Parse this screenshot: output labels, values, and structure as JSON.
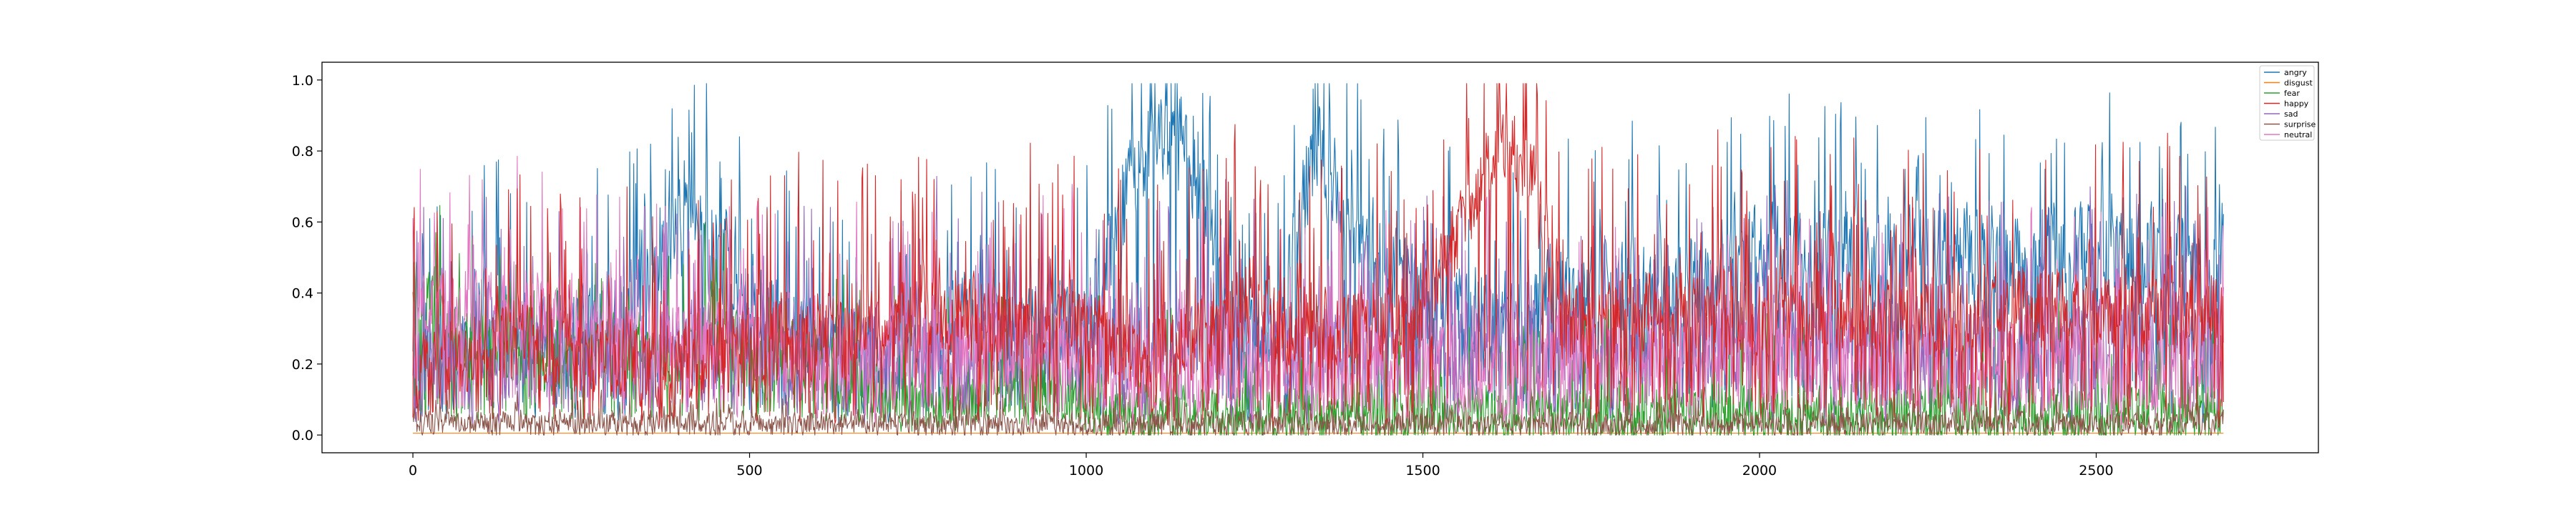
{
  "chart_data": {
    "type": "line",
    "title": "",
    "xlabel": "",
    "ylabel": "",
    "xlim": [
      -135,
      2830
    ],
    "ylim": [
      -0.05,
      1.05
    ],
    "n_points": 2690,
    "grid": false,
    "legend_position": "top-right",
    "x_ticks": [
      0,
      500,
      1000,
      1500,
      2000,
      2500
    ],
    "x_tick_labels": [
      "0",
      "500",
      "1000",
      "1500",
      "2000",
      "2500"
    ],
    "y_ticks": [
      0.0,
      0.2,
      0.4,
      0.6,
      0.8,
      1.0
    ],
    "y_tick_labels": [
      "0.0",
      "0.2",
      "0.4",
      "0.6",
      "0.8",
      "1.0"
    ],
    "series": [
      {
        "name": "angry",
        "color": "#1f77b4",
        "draw_order": 1,
        "anchors_x": [
          0,
          100,
          200,
          300,
          380,
          420,
          500,
          600,
          700,
          800,
          900,
          1000,
          1040,
          1080,
          1120,
          1160,
          1200,
          1240,
          1300,
          1340,
          1400,
          1500,
          1600,
          1700,
          1800,
          1900,
          2000,
          2100,
          2200,
          2300,
          2400,
          2500,
          2600,
          2690
        ],
        "anchors_y": [
          0.15,
          0.3,
          0.25,
          0.3,
          0.55,
          0.6,
          0.4,
          0.2,
          0.2,
          0.3,
          0.3,
          0.3,
          0.55,
          0.8,
          0.85,
          0.75,
          0.5,
          0.2,
          0.4,
          0.85,
          0.5,
          0.4,
          0.3,
          0.4,
          0.4,
          0.4,
          0.5,
          0.5,
          0.5,
          0.5,
          0.5,
          0.5,
          0.5,
          0.5
        ],
        "noise": [
          0.03,
          0.6,
          0.18,
          0.8
        ]
      },
      {
        "name": "disgust",
        "color": "#ff7f0e",
        "draw_order": 0,
        "anchors_x": [
          0,
          2690
        ],
        "anchors_y": [
          0.005,
          0.005
        ],
        "noise": [
          0.0,
          0.012,
          0.9,
          0.0
        ]
      },
      {
        "name": "fear",
        "color": "#2ca02c",
        "draw_order": 2,
        "anchors_x": [
          0,
          30,
          100,
          200,
          300,
          400,
          450,
          500,
          600,
          700,
          800,
          900,
          1000,
          1100,
          1200,
          1300,
          1400,
          1500,
          1600,
          1700,
          1800,
          1900,
          2000,
          2100,
          2200,
          2300,
          2400,
          2500,
          2600,
          2690
        ],
        "anchors_y": [
          0.45,
          0.35,
          0.25,
          0.2,
          0.25,
          0.2,
          0.35,
          0.2,
          0.2,
          0.1,
          0.1,
          0.15,
          0.1,
          0.05,
          0.05,
          0.05,
          0.05,
          0.05,
          0.05,
          0.05,
          0.05,
          0.05,
          0.05,
          0.05,
          0.05,
          0.05,
          0.05,
          0.05,
          0.05,
          0.05
        ],
        "noise": [
          0.02,
          0.35,
          0.1,
          0.9
        ]
      },
      {
        "name": "happy",
        "color": "#d62728",
        "draw_order": 6,
        "anchors_x": [
          0,
          100,
          200,
          300,
          400,
          500,
          600,
          700,
          800,
          900,
          1000,
          1100,
          1200,
          1250,
          1300,
          1400,
          1500,
          1580,
          1620,
          1660,
          1700,
          1800,
          1900,
          2000,
          2100,
          2200,
          2300,
          2400,
          2500,
          2600,
          2690
        ],
        "anchors_y": [
          0.15,
          0.25,
          0.25,
          0.2,
          0.2,
          0.25,
          0.25,
          0.3,
          0.35,
          0.3,
          0.3,
          0.2,
          0.3,
          0.4,
          0.3,
          0.3,
          0.35,
          0.7,
          0.85,
          0.75,
          0.3,
          0.35,
          0.35,
          0.35,
          0.35,
          0.35,
          0.35,
          0.35,
          0.35,
          0.35,
          0.35
        ],
        "noise": [
          0.01,
          0.6,
          0.14,
          0.85
        ]
      },
      {
        "name": "sad",
        "color": "#9467bd",
        "draw_order": 4,
        "anchors_x": [
          0,
          300,
          600,
          900,
          1200,
          1500,
          1800,
          2100,
          2400,
          2690
        ],
        "anchors_y": [
          0.2,
          0.25,
          0.25,
          0.25,
          0.25,
          0.25,
          0.25,
          0.25,
          0.25,
          0.3
        ],
        "noise": [
          0.02,
          0.55,
          0.16,
          0.8
        ]
      },
      {
        "name": "surprise",
        "color": "#8c564b",
        "draw_order": 3,
        "anchors_x": [
          0,
          2690
        ],
        "anchors_y": [
          0.03,
          0.03
        ],
        "noise": [
          0.0,
          0.12,
          0.04,
          0.85
        ]
      },
      {
        "name": "neutral",
        "color": "#e377c2",
        "draw_order": 5,
        "anchors_x": [
          0,
          20,
          100,
          200,
          300,
          400,
          500,
          600,
          700,
          800,
          900,
          1000,
          1100,
          1200,
          1300,
          1400,
          1500,
          1600,
          1700,
          1800,
          1900,
          2000,
          2100,
          2200,
          2300,
          2400,
          2500,
          2600,
          2690
        ],
        "anchors_y": [
          0.2,
          0.4,
          0.35,
          0.35,
          0.25,
          0.25,
          0.25,
          0.2,
          0.2,
          0.25,
          0.25,
          0.2,
          0.15,
          0.2,
          0.2,
          0.2,
          0.2,
          0.15,
          0.2,
          0.2,
          0.2,
          0.2,
          0.2,
          0.2,
          0.2,
          0.2,
          0.2,
          0.2,
          0.2
        ],
        "noise": [
          0.02,
          0.55,
          0.14,
          0.8
        ]
      }
    ]
  }
}
